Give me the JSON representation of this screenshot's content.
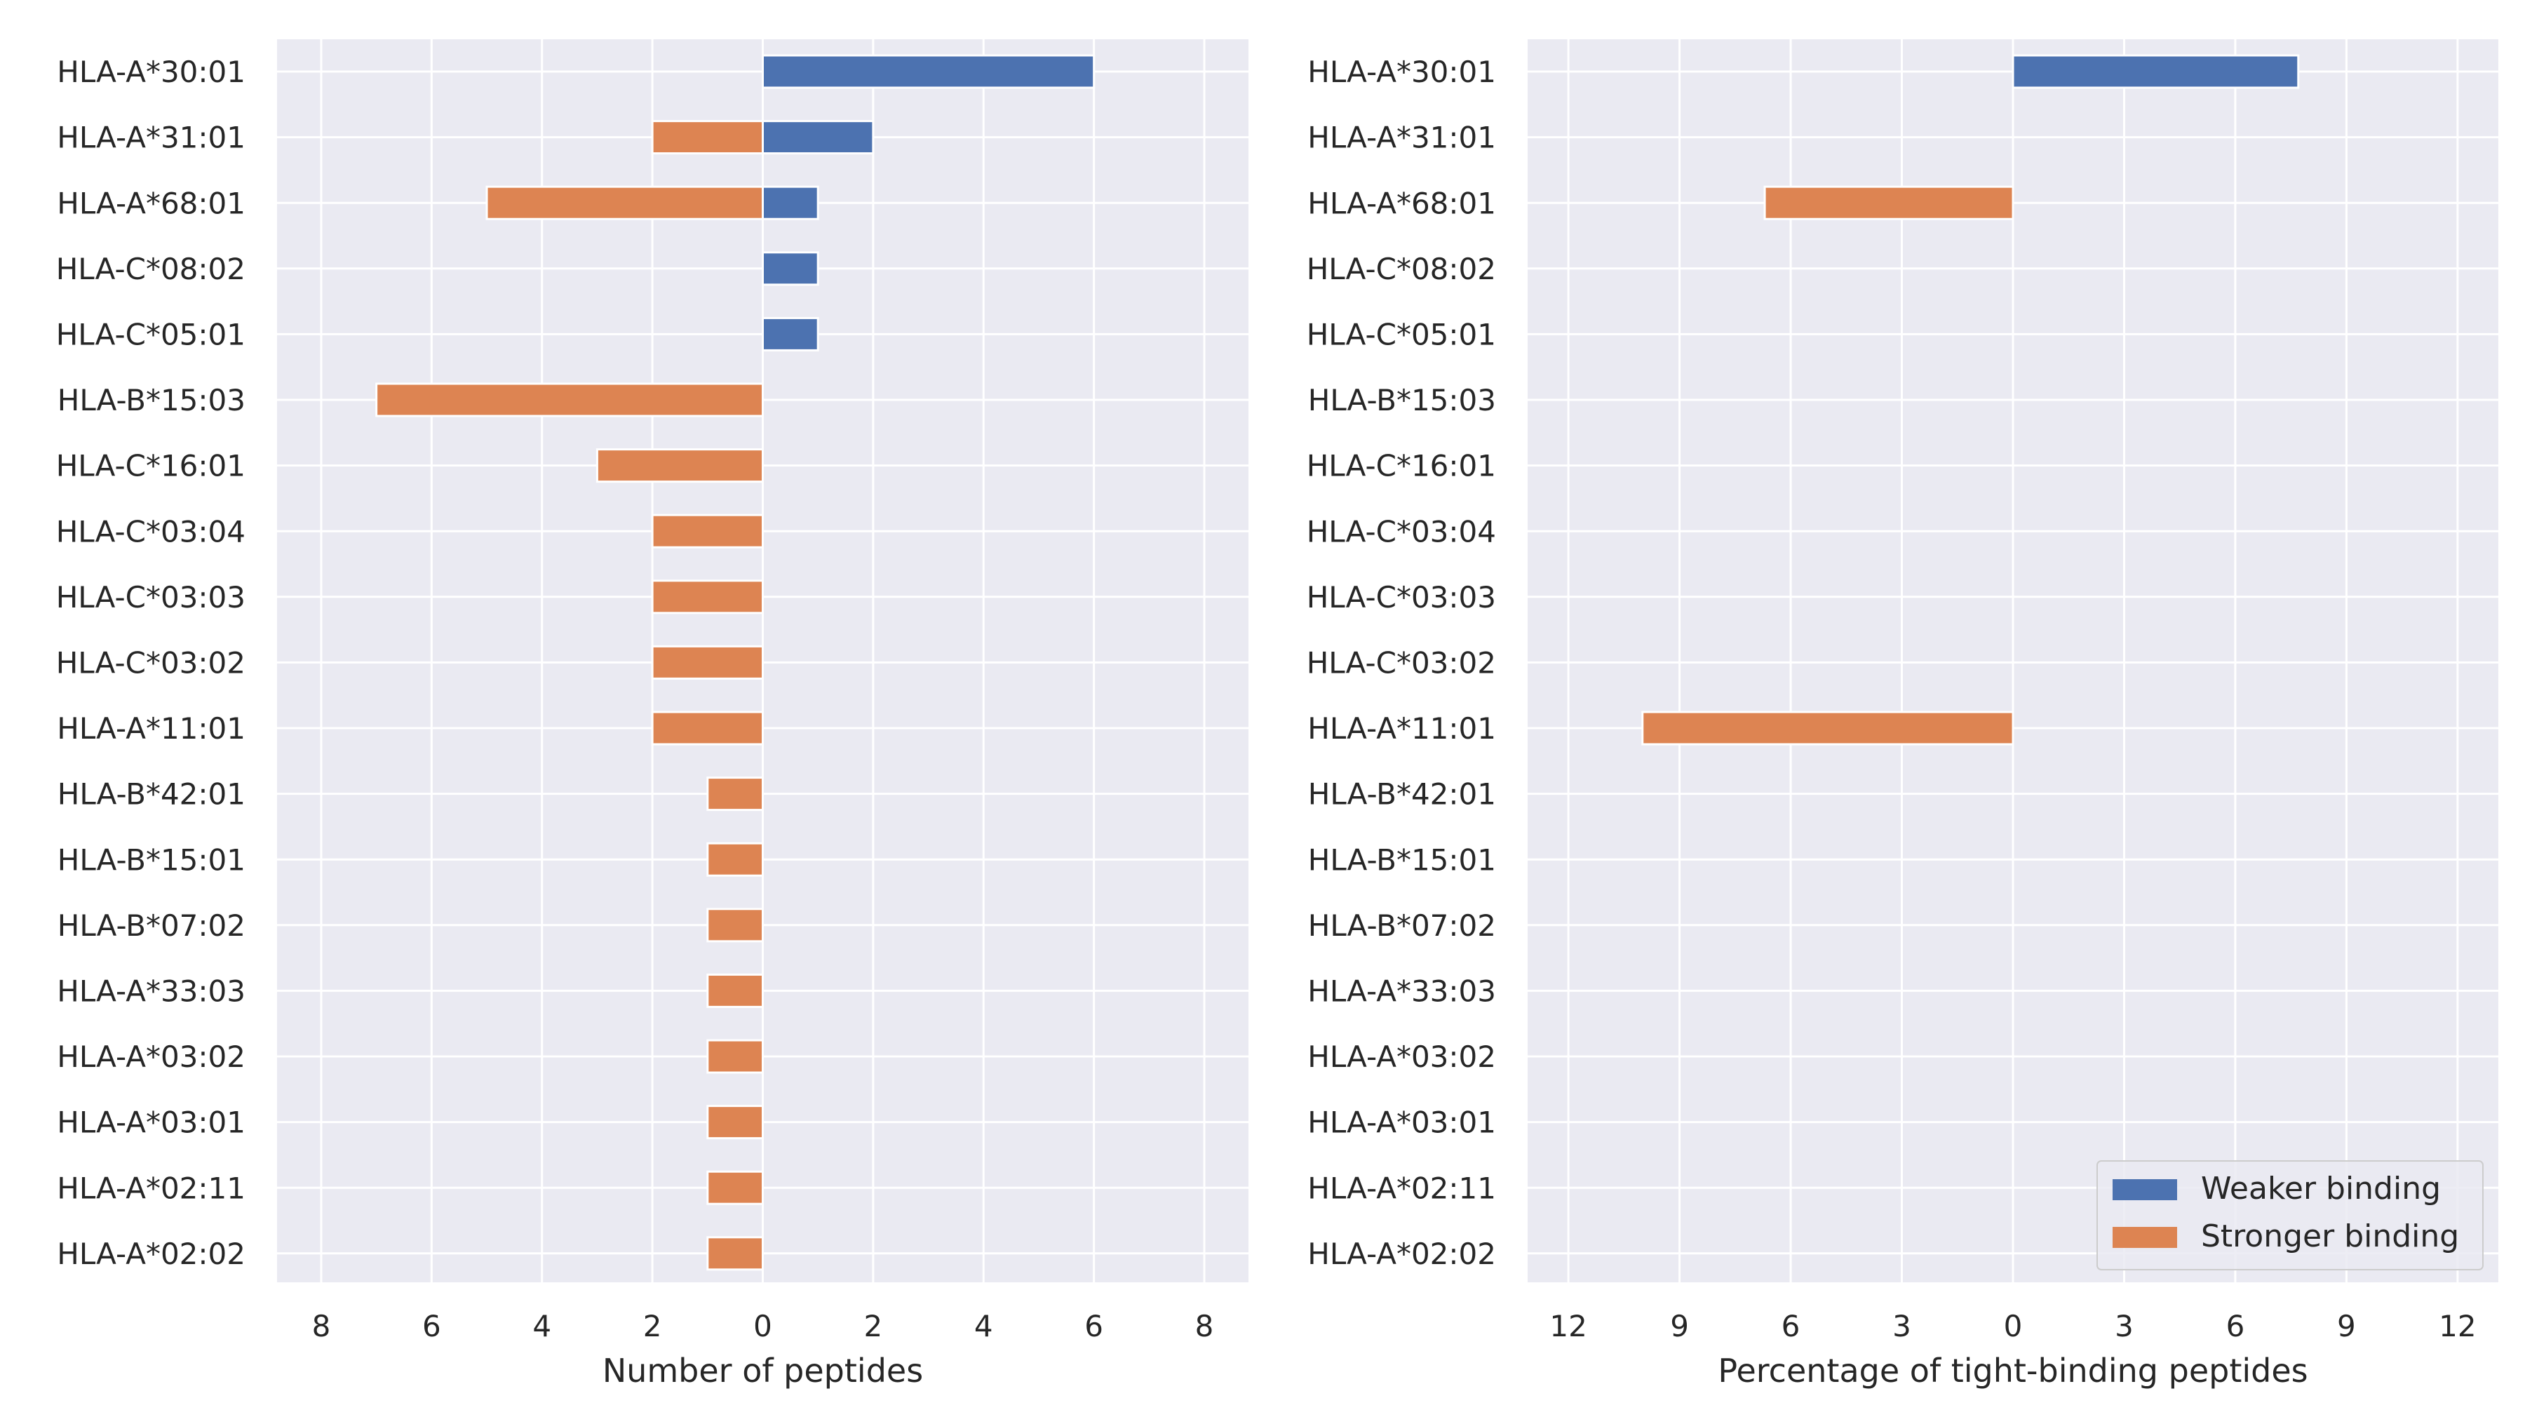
{
  "colors": {
    "weaker": "#4c72b0",
    "stronger": "#dd8452",
    "panel_bg": "#eaeaf2",
    "grid": "#ffffff",
    "text": "#262626"
  },
  "legend": {
    "weaker_label": "Weaker binding",
    "stronger_label": "Stronger binding",
    "placement": "lower-right of right panel"
  },
  "chart_data": [
    {
      "type": "bar",
      "orientation": "horizontal",
      "xlabel": "Number of peptides",
      "xlim": [
        -8.8,
        8.8
      ],
      "xticks": [
        -8,
        -6,
        -4,
        -2,
        0,
        2,
        4,
        6,
        8
      ],
      "xtick_labels": [
        "8",
        "6",
        "4",
        "2",
        "0",
        "2",
        "4",
        "6",
        "8"
      ],
      "grid": true,
      "categories": [
        "HLA-A*30:01",
        "HLA-A*31:01",
        "HLA-A*68:01",
        "HLA-C*08:02",
        "HLA-C*05:01",
        "HLA-B*15:03",
        "HLA-C*16:01",
        "HLA-C*03:04",
        "HLA-C*03:03",
        "HLA-C*03:02",
        "HLA-A*11:01",
        "HLA-B*42:01",
        "HLA-B*15:01",
        "HLA-B*07:02",
        "HLA-A*33:03",
        "HLA-A*03:02",
        "HLA-A*03:01",
        "HLA-A*02:11",
        "HLA-A*02:02"
      ],
      "series": [
        {
          "name": "Weaker binding",
          "direction": "right",
          "values": [
            6,
            2,
            1,
            1,
            1,
            0,
            0,
            0,
            0,
            0,
            0,
            0,
            0,
            0,
            0,
            0,
            0,
            0,
            0
          ]
        },
        {
          "name": "Stronger binding",
          "direction": "left",
          "values": [
            0,
            2,
            5,
            0,
            0,
            7,
            3,
            2,
            2,
            2,
            2,
            1,
            1,
            1,
            1,
            1,
            1,
            1,
            1
          ]
        }
      ]
    },
    {
      "type": "bar",
      "orientation": "horizontal",
      "xlabel": "Percentage of tight-binding peptides",
      "xlim": [
        -13.1,
        13.1
      ],
      "xticks": [
        -12,
        -9,
        -6,
        -3,
        0,
        3,
        6,
        9,
        12
      ],
      "xtick_labels": [
        "12",
        "9",
        "6",
        "3",
        "0",
        "3",
        "6",
        "9",
        "12"
      ],
      "grid": true,
      "categories": [
        "HLA-A*30:01",
        "HLA-A*31:01",
        "HLA-A*68:01",
        "HLA-C*08:02",
        "HLA-C*05:01",
        "HLA-B*15:03",
        "HLA-C*16:01",
        "HLA-C*03:04",
        "HLA-C*03:03",
        "HLA-C*03:02",
        "HLA-A*11:01",
        "HLA-B*42:01",
        "HLA-B*15:01",
        "HLA-B*07:02",
        "HLA-A*33:03",
        "HLA-A*03:02",
        "HLA-A*03:01",
        "HLA-A*02:11",
        "HLA-A*02:02"
      ],
      "series": [
        {
          "name": "Weaker binding",
          "direction": "right",
          "values": [
            7.7,
            0,
            0,
            0,
            0,
            0,
            0,
            0,
            0,
            0,
            0,
            0,
            0,
            0,
            0,
            0,
            0,
            0,
            0
          ]
        },
        {
          "name": "Stronger binding",
          "direction": "left",
          "values": [
            0,
            0,
            6.7,
            0,
            0,
            0,
            0,
            0,
            0,
            0,
            10,
            0,
            0,
            0,
            0,
            0,
            0,
            0,
            0
          ]
        }
      ]
    }
  ]
}
